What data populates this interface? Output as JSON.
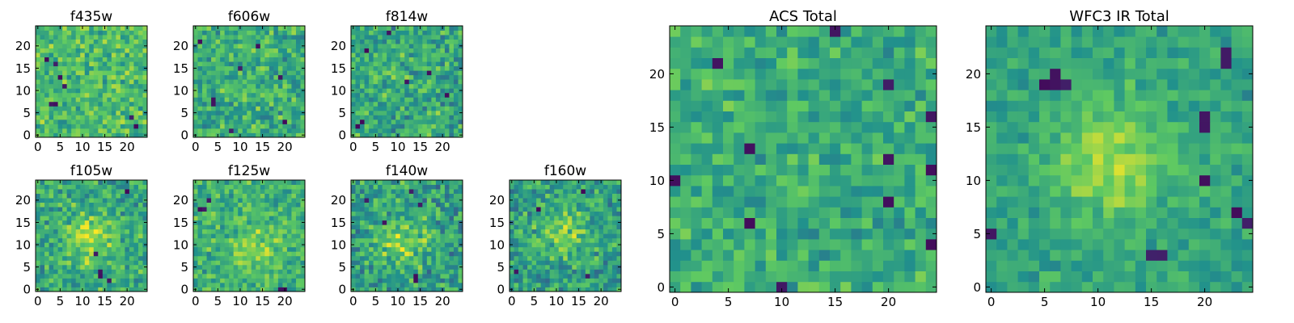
{
  "figure": {
    "colormap": "viridis",
    "colormap_stops": [
      "#440154",
      "#3b528b",
      "#21918c",
      "#5ec962",
      "#fde725"
    ]
  },
  "chart_data": [
    {
      "type": "heatmap",
      "title": "f435w",
      "grid": false,
      "xlim": [
        -0.5,
        24.5
      ],
      "ylim": [
        -0.5,
        24.5
      ],
      "xticks": [
        0,
        5,
        10,
        15,
        20
      ],
      "yticks": [
        0,
        5,
        10,
        15,
        20
      ],
      "rows": 25,
      "cols": 25,
      "values_note": "",
      "mean": 0.68,
      "spread": 0.16,
      "dark_cells": [
        [
          4,
          7
        ],
        [
          3,
          7
        ],
        [
          5,
          13
        ],
        [
          4,
          16
        ],
        [
          6,
          11
        ],
        [
          22,
          2
        ],
        [
          21,
          4
        ],
        [
          2,
          17
        ]
      ],
      "blobs": []
    },
    {
      "type": "heatmap",
      "title": "f606w",
      "grid": false,
      "xlim": [
        -0.5,
        24.5
      ],
      "ylim": [
        -0.5,
        24.5
      ],
      "xticks": [
        0,
        5,
        10,
        15,
        20
      ],
      "yticks": [
        0,
        5,
        10,
        15,
        20
      ],
      "rows": 25,
      "cols": 25,
      "mean": 0.62,
      "spread": 0.17,
      "dark_cells": [
        [
          4,
          7
        ],
        [
          4,
          8
        ],
        [
          8,
          1
        ],
        [
          20,
          3
        ],
        [
          1,
          21
        ],
        [
          10,
          15
        ],
        [
          14,
          20
        ],
        [
          19,
          13
        ]
      ],
      "blobs": []
    },
    {
      "type": "heatmap",
      "title": "f814w",
      "grid": false,
      "xlim": [
        -0.5,
        24.5
      ],
      "ylim": [
        -0.5,
        24.5
      ],
      "xticks": [
        0,
        5,
        10,
        15,
        20
      ],
      "yticks": [
        0,
        5,
        10,
        15,
        20
      ],
      "rows": 25,
      "cols": 25,
      "mean": 0.6,
      "spread": 0.18,
      "dark_cells": [
        [
          1,
          2
        ],
        [
          2,
          3
        ],
        [
          8,
          23
        ],
        [
          3,
          19
        ],
        [
          17,
          14
        ],
        [
          21,
          9
        ],
        [
          12,
          12
        ]
      ],
      "blobs": []
    },
    {
      "type": "heatmap",
      "title": "f105w",
      "grid": false,
      "xlim": [
        -0.5,
        24.5
      ],
      "ylim": [
        -0.5,
        24.5
      ],
      "xticks": [
        0,
        5,
        10,
        15,
        20
      ],
      "yticks": [
        0,
        5,
        10,
        15,
        20
      ],
      "rows": 25,
      "cols": 25,
      "mean": 0.6,
      "spread": 0.17,
      "dark_cells": [
        [
          14,
          3
        ],
        [
          14,
          4
        ],
        [
          20,
          22
        ],
        [
          16,
          2
        ],
        [
          13,
          8
        ]
      ],
      "blobs": [
        [
          12,
          11,
          4,
          0.28
        ]
      ]
    },
    {
      "type": "heatmap",
      "title": "f125w",
      "grid": false,
      "xlim": [
        -0.5,
        24.5
      ],
      "ylim": [
        -0.5,
        24.5
      ],
      "xticks": [
        0,
        5,
        10,
        15,
        20
      ],
      "yticks": [
        0,
        5,
        10,
        15,
        20
      ],
      "rows": 25,
      "cols": 25,
      "mean": 0.64,
      "spread": 0.15,
      "dark_cells": [
        [
          19,
          0
        ],
        [
          20,
          0
        ],
        [
          2,
          18
        ],
        [
          1,
          18
        ],
        [
          3,
          20
        ]
      ],
      "blobs": [
        [
          13,
          9,
          4,
          0.18
        ]
      ]
    },
    {
      "type": "heatmap",
      "title": "f140w",
      "grid": false,
      "xlim": [
        -0.5,
        24.5
      ],
      "ylim": [
        -0.5,
        24.5
      ],
      "xticks": [
        0,
        5,
        10,
        15,
        20
      ],
      "yticks": [
        0,
        5,
        10,
        15,
        20
      ],
      "rows": 25,
      "cols": 25,
      "mean": 0.56,
      "spread": 0.18,
      "dark_cells": [
        [
          14,
          2
        ],
        [
          14,
          3
        ],
        [
          7,
          15
        ],
        [
          15,
          19
        ],
        [
          3,
          20
        ],
        [
          13,
          22
        ]
      ],
      "blobs": [
        [
          11,
          11,
          4,
          0.26
        ]
      ]
    },
    {
      "type": "heatmap",
      "title": "f160w",
      "grid": false,
      "xlim": [
        -0.5,
        24.5
      ],
      "ylim": [
        -0.5,
        24.5
      ],
      "xticks": [
        0,
        5,
        10,
        15,
        20
      ],
      "yticks": [
        0,
        5,
        10,
        15,
        20
      ],
      "rows": 25,
      "cols": 25,
      "mean": 0.56,
      "spread": 0.17,
      "dark_cells": [
        [
          17,
          3
        ],
        [
          1,
          4
        ],
        [
          6,
          18
        ],
        [
          16,
          22
        ]
      ],
      "blobs": [
        [
          12,
          13,
          4,
          0.22
        ]
      ]
    },
    {
      "type": "heatmap",
      "title": "ACS Total",
      "grid": false,
      "xlim": [
        -0.5,
        24.5
      ],
      "ylim": [
        -0.5,
        24.5
      ],
      "xticks": [
        0,
        5,
        10,
        15,
        20
      ],
      "yticks": [
        0,
        5,
        10,
        15,
        20
      ],
      "rows": 25,
      "cols": 25,
      "mean": 0.62,
      "spread": 0.13,
      "dark_cells": [
        [
          10,
          0
        ],
        [
          7,
          6
        ],
        [
          7,
          13
        ],
        [
          4,
          21
        ],
        [
          20,
          8
        ],
        [
          20,
          12
        ],
        [
          20,
          19
        ],
        [
          15,
          24
        ],
        [
          0,
          10
        ],
        [
          24,
          4
        ],
        [
          24,
          11
        ],
        [
          24,
          16
        ]
      ],
      "blobs": []
    },
    {
      "type": "heatmap",
      "title": "WFC3 IR Total",
      "grid": false,
      "xlim": [
        -0.5,
        24.5
      ],
      "ylim": [
        -0.5,
        24.5
      ],
      "xticks": [
        0,
        5,
        10,
        15,
        20
      ],
      "yticks": [
        0,
        5,
        10,
        15,
        20
      ],
      "rows": 25,
      "cols": 25,
      "mean": 0.58,
      "spread": 0.1,
      "dark_cells": [
        [
          15,
          3
        ],
        [
          16,
          3
        ],
        [
          20,
          10
        ],
        [
          20,
          15
        ],
        [
          20,
          16
        ],
        [
          22,
          21
        ],
        [
          22,
          22
        ],
        [
          6,
          19
        ],
        [
          6,
          20
        ],
        [
          7,
          19
        ],
        [
          5,
          19
        ],
        [
          0,
          5
        ],
        [
          23,
          7
        ],
        [
          24,
          6
        ]
      ],
      "blobs": [
        [
          11,
          12,
          4,
          0.28
        ]
      ]
    }
  ]
}
